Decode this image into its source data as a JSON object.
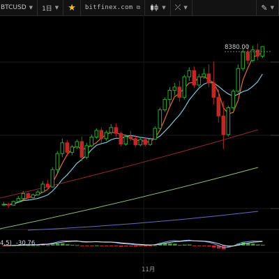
{
  "toolbar": {
    "symbol": "BTCUSD",
    "interval": "1日",
    "domain": "bitfinex.com",
    "icons": [
      "caret-down-icon",
      "star-icon",
      "external-link-icon",
      "candlestick-icon",
      "drawing-tool-icon",
      "pen-icon"
    ]
  },
  "indicator": {
    "label_prefix": "4,5)",
    "value": "-30.76"
  },
  "chart_data": {
    "type": "candlestick",
    "price_label": "8380.00",
    "x_tick_label": "11月",
    "ohlc": [
      [
        4550,
        4620,
        4520,
        4560
      ],
      [
        4560,
        4600,
        4480,
        4540
      ],
      [
        4540,
        4650,
        4530,
        4630
      ],
      [
        4630,
        4760,
        4600,
        4700
      ],
      [
        4700,
        4880,
        4650,
        4820
      ],
      [
        4820,
        4850,
        4680,
        4720
      ],
      [
        4720,
        4820,
        4700,
        4790
      ],
      [
        4790,
        4900,
        4770,
        4860
      ],
      [
        4860,
        5120,
        4840,
        5050
      ],
      [
        5050,
        5150,
        4900,
        4980
      ],
      [
        4980,
        5460,
        4960,
        5400
      ],
      [
        5400,
        5850,
        5300,
        5790
      ],
      [
        5790,
        6150,
        5700,
        6050
      ],
      [
        6050,
        6120,
        5720,
        5820
      ],
      [
        5820,
        6000,
        5750,
        5950
      ],
      [
        5950,
        6130,
        5900,
        6080
      ],
      [
        6080,
        6200,
        5600,
        5700
      ],
      [
        5700,
        6050,
        5650,
        5980
      ],
      [
        5980,
        6250,
        5940,
        6190
      ],
      [
        6190,
        6400,
        6150,
        6350
      ],
      [
        6350,
        6420,
        6050,
        6150
      ],
      [
        6150,
        6350,
        6100,
        6300
      ],
      [
        6300,
        6500,
        6250,
        6420
      ],
      [
        6420,
        6520,
        6200,
        6280
      ],
      [
        6280,
        6320,
        5960,
        6020
      ],
      [
        6020,
        6250,
        5980,
        6200
      ],
      [
        6200,
        6340,
        6100,
        6150
      ],
      [
        6150,
        6230,
        5950,
        6000
      ],
      [
        6000,
        6190,
        5970,
        6130
      ],
      [
        6130,
        6190,
        5960,
        6010
      ],
      [
        6010,
        6170,
        5980,
        6140
      ],
      [
        6140,
        6450,
        6120,
        6400
      ],
      [
        6400,
        6900,
        6380,
        6850
      ],
      [
        6850,
        7150,
        6800,
        7100
      ],
      [
        7100,
        7400,
        6950,
        7320
      ],
      [
        7320,
        7500,
        7200,
        7400
      ],
      [
        7400,
        7550,
        7050,
        7150
      ],
      [
        7150,
        7700,
        7100,
        7650
      ],
      [
        7650,
        7880,
        7550,
        7800
      ],
      [
        7800,
        7900,
        7380,
        7450
      ],
      [
        7450,
        7720,
        7400,
        7650
      ],
      [
        7650,
        7850,
        7600,
        7720
      ],
      [
        7720,
        7950,
        7400,
        7500
      ],
      [
        7500,
        8020,
        6980,
        7150
      ],
      [
        7150,
        7350,
        6550,
        6700
      ],
      [
        6700,
        7050,
        5900,
        6250
      ],
      [
        6250,
        6950,
        6200,
        6900
      ],
      [
        6900,
        7350,
        6850,
        7300
      ],
      [
        7300,
        7950,
        7250,
        7850
      ],
      [
        7850,
        8350,
        7800,
        8250
      ],
      [
        8250,
        8420,
        7950,
        8050
      ],
      [
        8050,
        8400,
        8000,
        8300
      ],
      [
        8300,
        8450,
        8050,
        8150
      ],
      [
        8150,
        8390,
        8100,
        8380
      ]
    ],
    "ma_colors": [
      "#e07030",
      "#7fc8d8",
      "#8c2a30",
      "#8fc070",
      "#6a6ac0"
    ],
    "ylim": [
      3900,
      8800
    ],
    "up_color": "#2ea82e",
    "down_color": "#c02828"
  }
}
